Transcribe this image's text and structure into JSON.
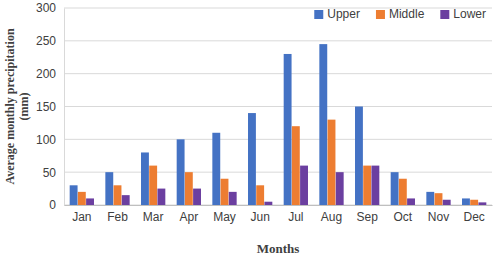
{
  "chart_data": {
    "type": "bar",
    "x_label": "Months",
    "y_label": "Average monthly precipitation (mm)",
    "categories": [
      "Jan",
      "Feb",
      "Mar",
      "Apr",
      "May",
      "Jun",
      "Jul",
      "Aug",
      "Sep",
      "Oct",
      "Nov",
      "Dec"
    ],
    "series": [
      {
        "name": "Upper",
        "color": "#4472c4",
        "values": [
          30,
          50,
          80,
          100,
          110,
          140,
          230,
          245,
          150,
          50,
          20,
          10
        ]
      },
      {
        "name": "Middle",
        "color": "#ed7d31",
        "values": [
          20,
          30,
          60,
          50,
          40,
          30,
          120,
          130,
          60,
          40,
          18,
          8
        ]
      },
      {
        "name": "Lower",
        "color": "#6b3fa0",
        "values": [
          10,
          15,
          25,
          25,
          20,
          5,
          60,
          50,
          60,
          10,
          8,
          4
        ]
      }
    ],
    "ylim": [
      0,
      300
    ],
    "yticks": [
      0,
      50,
      100,
      150,
      200,
      250,
      300
    ],
    "grid": true,
    "legend": "top-right"
  }
}
